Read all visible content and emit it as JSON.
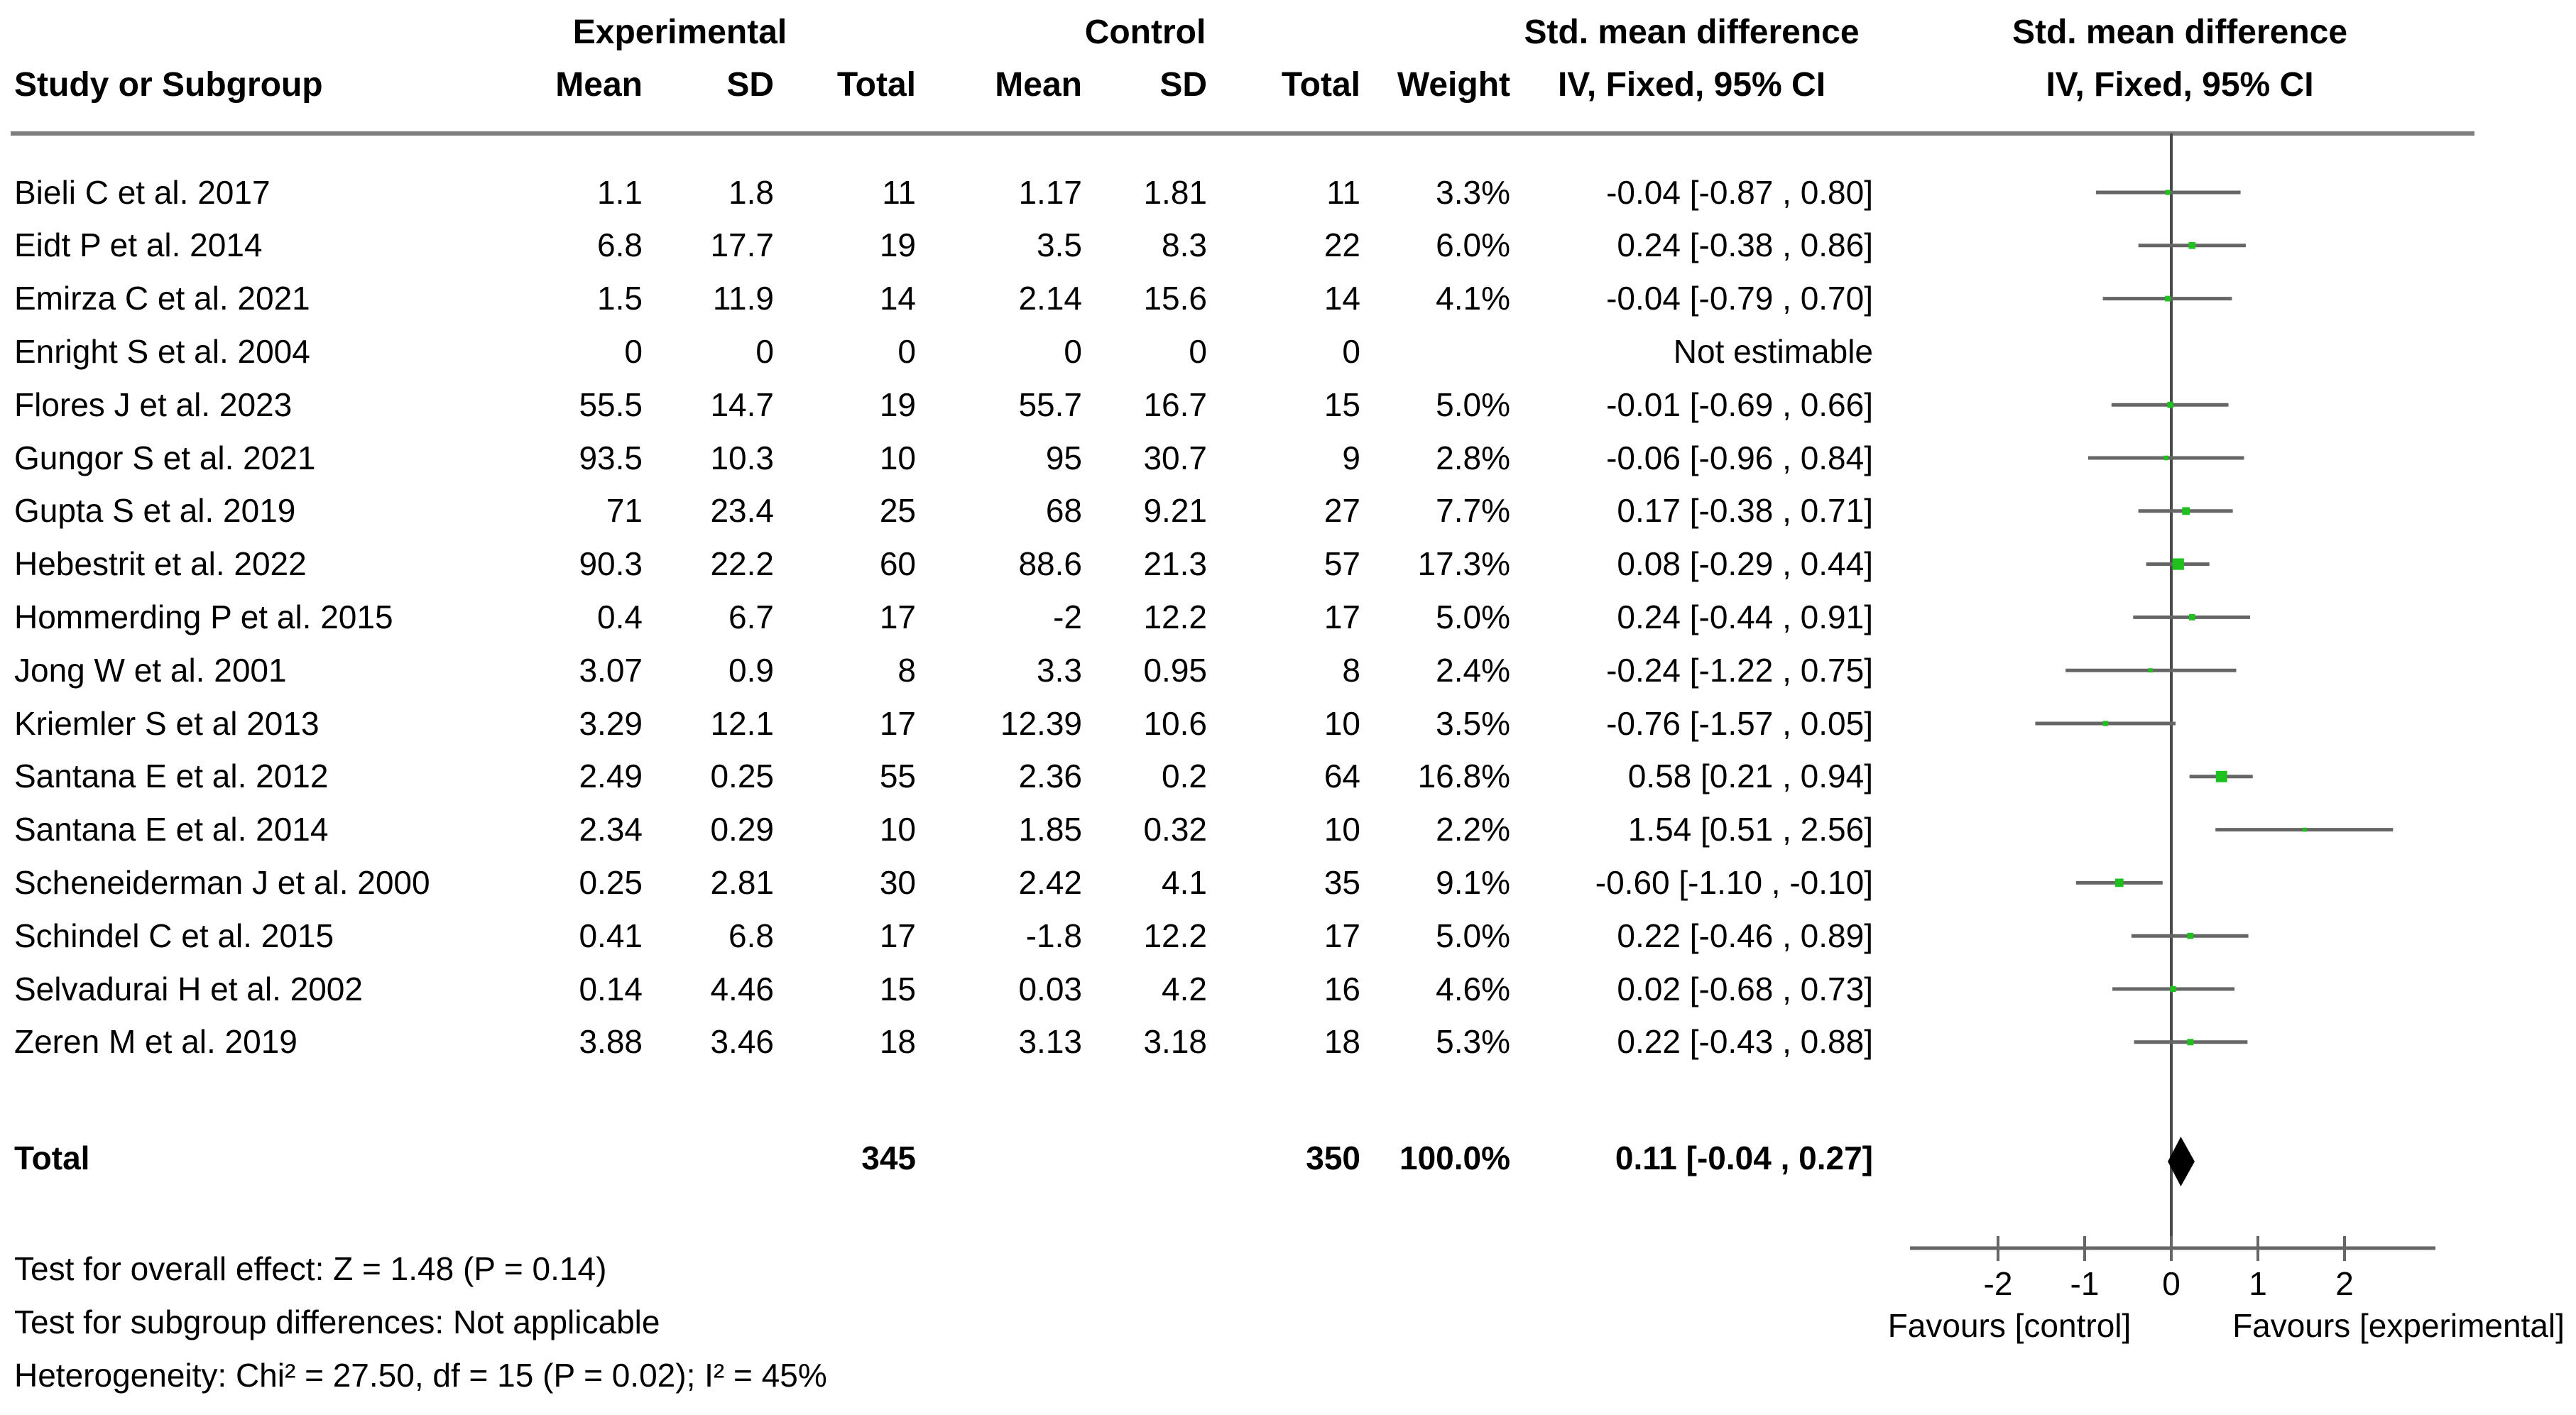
{
  "header": {
    "study_col": "Study or Subgroup",
    "group_experimental": "Experimental",
    "group_control": "Control",
    "mean": "Mean",
    "sd": "SD",
    "total": "Total",
    "weight": "Weight",
    "smd_title": "Std. mean difference",
    "smd_subtitle": "IV, Fixed, 95% CI",
    "plot_title": "Std. mean difference",
    "plot_subtitle": "IV, Fixed, 95% CI"
  },
  "colors": {
    "marker_green": "#1fc11f",
    "ci_line": "#666666",
    "axis_line": "#666666",
    "zero_line": "#4a4a4a",
    "header_rule": "#7d7d7d",
    "diamond": "#000000",
    "text": "#000000",
    "background": "#ffffff"
  },
  "chart_data": {
    "type": "forest",
    "effect_measure": "Std. mean difference, IV, Fixed, 95% CI",
    "axis": {
      "ticks": [
        -2,
        -1,
        0,
        1,
        2
      ],
      "range": [
        -3,
        3
      ],
      "favours_left": "Favours [control]",
      "favours_right": "Favours [experimental]"
    },
    "studies": [
      {
        "name": "Bieli C et al. 2017",
        "exp_mean": "1.1",
        "exp_sd": "1.8",
        "exp_total": "11",
        "ctrl_mean": "1.17",
        "ctrl_sd": "1.81",
        "ctrl_total": "11",
        "weight": "3.3%",
        "ci_text": "-0.04 [-0.87 , 0.80]",
        "est": -0.04,
        "lo": -0.87,
        "hi": 0.8
      },
      {
        "name": "Eidt P et al. 2014",
        "exp_mean": "6.8",
        "exp_sd": "17.7",
        "exp_total": "19",
        "ctrl_mean": "3.5",
        "ctrl_sd": "8.3",
        "ctrl_total": "22",
        "weight": "6.0%",
        "ci_text": "0.24 [-0.38 , 0.86]",
        "est": 0.24,
        "lo": -0.38,
        "hi": 0.86
      },
      {
        "name": "Emirza C et al. 2021",
        "exp_mean": "1.5",
        "exp_sd": "11.9",
        "exp_total": "14",
        "ctrl_mean": "2.14",
        "ctrl_sd": "15.6",
        "ctrl_total": "14",
        "weight": "4.1%",
        "ci_text": "-0.04 [-0.79 , 0.70]",
        "est": -0.04,
        "lo": -0.79,
        "hi": 0.7
      },
      {
        "name": "Enright S et al. 2004",
        "exp_mean": "0",
        "exp_sd": "0",
        "exp_total": "0",
        "ctrl_mean": "0",
        "ctrl_sd": "0",
        "ctrl_total": "0",
        "weight": "",
        "ci_text": "Not estimable",
        "est": null,
        "lo": null,
        "hi": null
      },
      {
        "name": "Flores J et al. 2023",
        "exp_mean": "55.5",
        "exp_sd": "14.7",
        "exp_total": "19",
        "ctrl_mean": "55.7",
        "ctrl_sd": "16.7",
        "ctrl_total": "15",
        "weight": "5.0%",
        "ci_text": "-0.01 [-0.69 , 0.66]",
        "est": -0.01,
        "lo": -0.69,
        "hi": 0.66
      },
      {
        "name": "Gungor S et al. 2021",
        "exp_mean": "93.5",
        "exp_sd": "10.3",
        "exp_total": "10",
        "ctrl_mean": "95",
        "ctrl_sd": "30.7",
        "ctrl_total": "9",
        "weight": "2.8%",
        "ci_text": "-0.06 [-0.96 , 0.84]",
        "est": -0.06,
        "lo": -0.96,
        "hi": 0.84
      },
      {
        "name": "Gupta S et al. 2019",
        "exp_mean": "71",
        "exp_sd": "23.4",
        "exp_total": "25",
        "ctrl_mean": "68",
        "ctrl_sd": "9.21",
        "ctrl_total": "27",
        "weight": "7.7%",
        "ci_text": "0.17 [-0.38 , 0.71]",
        "est": 0.17,
        "lo": -0.38,
        "hi": 0.71
      },
      {
        "name": "Hebestrit et al. 2022",
        "exp_mean": "90.3",
        "exp_sd": "22.2",
        "exp_total": "60",
        "ctrl_mean": "88.6",
        "ctrl_sd": "21.3",
        "ctrl_total": "57",
        "weight": "17.3%",
        "ci_text": "0.08 [-0.29 , 0.44]",
        "est": 0.08,
        "lo": -0.29,
        "hi": 0.44
      },
      {
        "name": "Hommerding P et al. 2015",
        "exp_mean": "0.4",
        "exp_sd": "6.7",
        "exp_total": "17",
        "ctrl_mean": "-2",
        "ctrl_sd": "12.2",
        "ctrl_total": "17",
        "weight": "5.0%",
        "ci_text": "0.24 [-0.44 , 0.91]",
        "est": 0.24,
        "lo": -0.44,
        "hi": 0.91
      },
      {
        "name": "Jong W et al. 2001",
        "exp_mean": "3.07",
        "exp_sd": "0.9",
        "exp_total": "8",
        "ctrl_mean": "3.3",
        "ctrl_sd": "0.95",
        "ctrl_total": "8",
        "weight": "2.4%",
        "ci_text": "-0.24 [-1.22 , 0.75]",
        "est": -0.24,
        "lo": -1.22,
        "hi": 0.75
      },
      {
        "name": "Kriemler S et al 2013",
        "exp_mean": "3.29",
        "exp_sd": "12.1",
        "exp_total": "17",
        "ctrl_mean": "12.39",
        "ctrl_sd": "10.6",
        "ctrl_total": "10",
        "weight": "3.5%",
        "ci_text": "-0.76 [-1.57 , 0.05]",
        "est": -0.76,
        "lo": -1.57,
        "hi": 0.05
      },
      {
        "name": "Santana E et al. 2012",
        "exp_mean": "2.49",
        "exp_sd": "0.25",
        "exp_total": "55",
        "ctrl_mean": "2.36",
        "ctrl_sd": "0.2",
        "ctrl_total": "64",
        "weight": "16.8%",
        "ci_text": "0.58 [0.21 , 0.94]",
        "est": 0.58,
        "lo": 0.21,
        "hi": 0.94
      },
      {
        "name": "Santana E et al. 2014",
        "exp_mean": "2.34",
        "exp_sd": "0.29",
        "exp_total": "10",
        "ctrl_mean": "1.85",
        "ctrl_sd": "0.32",
        "ctrl_total": "10",
        "weight": "2.2%",
        "ci_text": "1.54 [0.51 , 2.56]",
        "est": 1.54,
        "lo": 0.51,
        "hi": 2.56
      },
      {
        "name": "Scheneiderman J et al. 2000",
        "exp_mean": "0.25",
        "exp_sd": "2.81",
        "exp_total": "30",
        "ctrl_mean": "2.42",
        "ctrl_sd": "4.1",
        "ctrl_total": "35",
        "weight": "9.1%",
        "ci_text": "-0.60 [-1.10 , -0.10]",
        "est": -0.6,
        "lo": -1.1,
        "hi": -0.1
      },
      {
        "name": "Schindel C et al. 2015",
        "exp_mean": "0.41",
        "exp_sd": "6.8",
        "exp_total": "17",
        "ctrl_mean": "-1.8",
        "ctrl_sd": "12.2",
        "ctrl_total": "17",
        "weight": "5.0%",
        "ci_text": "0.22 [-0.46 , 0.89]",
        "est": 0.22,
        "lo": -0.46,
        "hi": 0.89
      },
      {
        "name": "Selvadurai H et al. 2002",
        "exp_mean": "0.14",
        "exp_sd": "4.46",
        "exp_total": "15",
        "ctrl_mean": "0.03",
        "ctrl_sd": "4.2",
        "ctrl_total": "16",
        "weight": "4.6%",
        "ci_text": "0.02 [-0.68 , 0.73]",
        "est": 0.02,
        "lo": -0.68,
        "hi": 0.73
      },
      {
        "name": "Zeren M et al. 2019",
        "exp_mean": "3.88",
        "exp_sd": "3.46",
        "exp_total": "18",
        "ctrl_mean": "3.13",
        "ctrl_sd": "3.18",
        "ctrl_total": "18",
        "weight": "5.3%",
        "ci_text": "0.22 [-0.43 , 0.88]",
        "est": 0.22,
        "lo": -0.43,
        "hi": 0.88
      }
    ],
    "total": {
      "label": "Total",
      "exp_total": "345",
      "ctrl_total": "350",
      "weight": "100.0%",
      "ci_text": "0.11 [-0.04 , 0.27]",
      "est": 0.11,
      "lo": -0.04,
      "hi": 0.27
    }
  },
  "footer": {
    "overall_effect": "Test for overall effect: Z = 1.48 (P = 0.14)",
    "subgroup_differences": "Test for subgroup differences: Not applicable",
    "heterogeneity": "Heterogeneity: Chi² = 27.50, df = 15 (P = 0.02); I² = 45%"
  }
}
